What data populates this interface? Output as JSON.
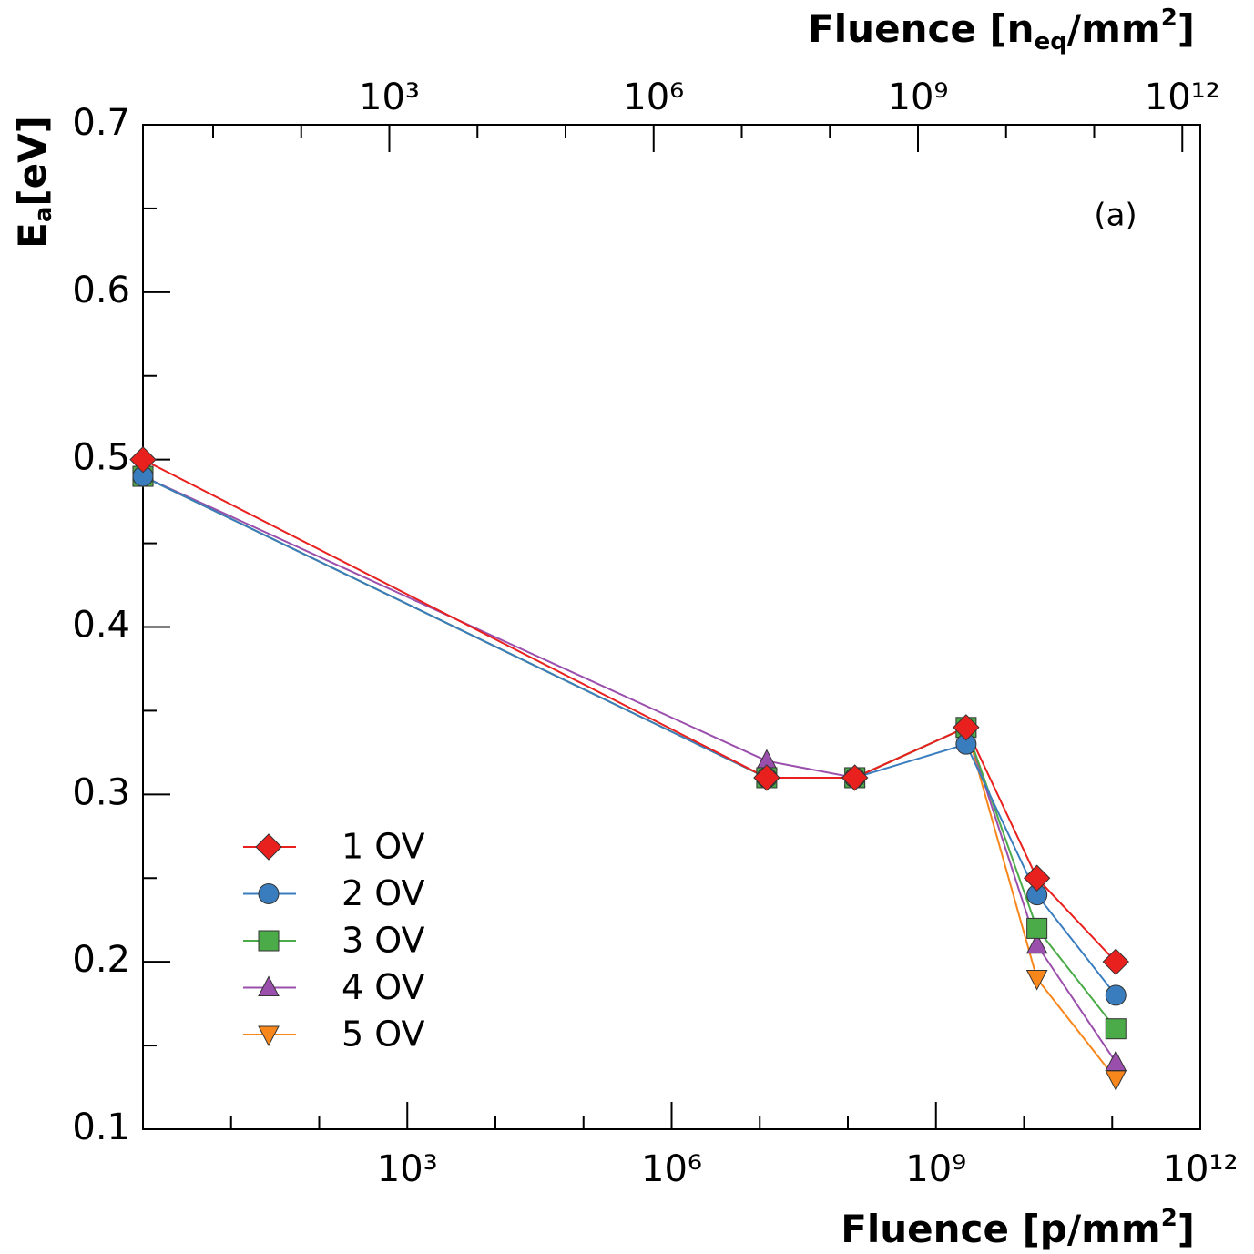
{
  "chart_data": {
    "type": "line",
    "title_x": [
      "Fluence [p/mm",
      "2",
      "]"
    ],
    "title_x2": [
      "Fluence [n",
      "eq",
      "/mm",
      "2",
      "]"
    ],
    "title_y": [
      "E",
      "a",
      "[eV]"
    ],
    "annotation": "(a)",
    "x": [
      1,
      12000000,
      120000000,
      2200000000,
      14000000000,
      110000000000
    ],
    "xlog": true,
    "xlim": [
      1,
      1000000000000
    ],
    "xticks": [
      {
        "value": 1000,
        "label": "10³"
      },
      {
        "value": 1000000,
        "label": "10⁶"
      },
      {
        "value": 1000000000,
        "label": "10⁹"
      },
      {
        "value": 1000000000000,
        "label": "10¹²"
      }
    ],
    "xminorticks": [
      10,
      100,
      10000,
      100000,
      10000000,
      100000000,
      10000000000,
      100000000000
    ],
    "x2lim": [
      1.6,
      1600000000000
    ],
    "x2ticks": [
      {
        "value": 1000,
        "label": "10³"
      },
      {
        "value": 1000000,
        "label": "10⁶"
      },
      {
        "value": 1000000000,
        "label": "10⁹"
      },
      {
        "value": 1000000000000,
        "label": "10¹²"
      }
    ],
    "x2minorticks": [
      10,
      100,
      10000,
      100000,
      10000000,
      100000000,
      10000000000,
      100000000000
    ],
    "ylim": [
      0.1,
      0.7
    ],
    "yticks": [
      0.1,
      0.2,
      0.3,
      0.4,
      0.5,
      0.6,
      0.7
    ],
    "yminorticks": [
      0.15,
      0.25,
      0.35,
      0.45,
      0.55,
      0.65
    ],
    "legend": "lower left",
    "series": [
      {
        "name": "1 OV",
        "color": "#e8211f",
        "marker": "diamond",
        "values": [
          0.5,
          0.31,
          0.31,
          0.34,
          0.25,
          0.2
        ]
      },
      {
        "name": "2 OV",
        "color": "#3a7dbf",
        "marker": "circle",
        "values": [
          0.49,
          0.31,
          0.31,
          0.33,
          0.24,
          0.18
        ]
      },
      {
        "name": "3 OV",
        "color": "#4bab48",
        "marker": "square",
        "values": [
          0.49,
          0.31,
          0.31,
          0.34,
          0.22,
          0.16
        ]
      },
      {
        "name": "4 OV",
        "color": "#9b4fac",
        "marker": "triangle",
        "values": [
          0.49,
          0.32,
          0.31,
          0.34,
          0.21,
          0.14
        ]
      },
      {
        "name": "5 OV",
        "color": "#f7861b",
        "marker": "triangle-down",
        "values": [
          0.49,
          0.31,
          0.31,
          0.34,
          0.19,
          0.13
        ]
      }
    ]
  }
}
